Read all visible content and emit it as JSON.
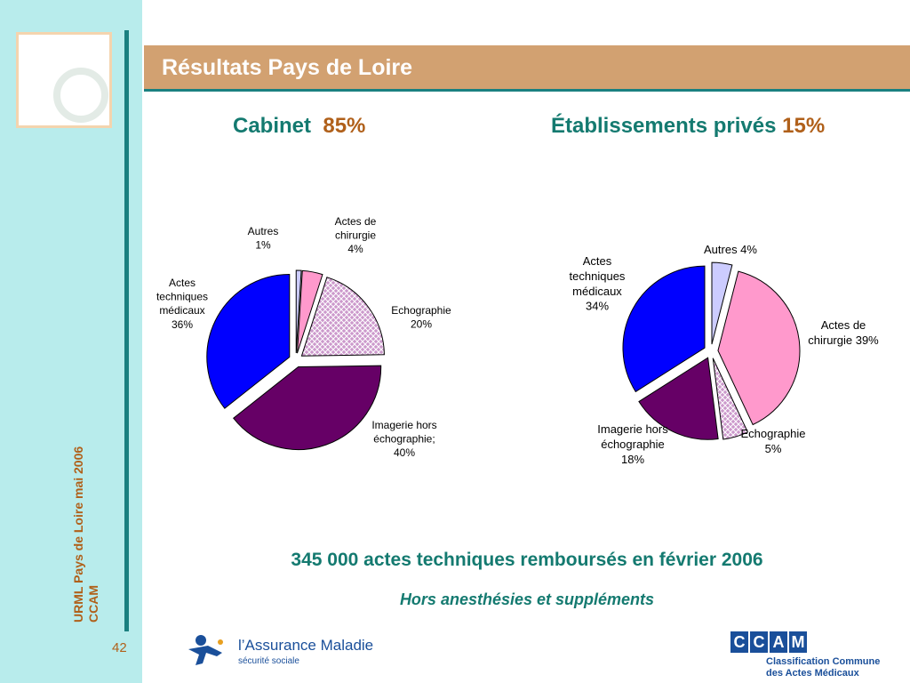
{
  "slide": {
    "title": "Résultats Pays de Loire",
    "page_number": "42",
    "sidebar_text": [
      "URML Pays de Loire mai 2006",
      "CCAM"
    ],
    "footer_main": "345 000 actes techniques remboursés en février 2006",
    "footer_sub": "Hors anesthésies et suppléments",
    "logo_assurance": "l’Assurance Maladie",
    "logo_assurance_sub": "sécurité sociale",
    "logo_ccam_letters": [
      "C",
      "C",
      "A",
      "M"
    ],
    "logo_ccam_lines": [
      "Classification Commune",
      "des Actes Médicaux"
    ]
  },
  "headings": {
    "left_label": "Cabinet",
    "left_value": "85%",
    "right_label": "Établissements privés",
    "right_value": "15%"
  },
  "colors": {
    "accent": "#1a8080",
    "title_bar": "#d2a171",
    "orange_text": "#b0601a",
    "teal_text": "#147a70",
    "sidebar": "#b8ecec"
  },
  "chart_data": [
    {
      "type": "pie",
      "title": "Cabinet",
      "slices": [
        {
          "category": "Autres",
          "value": 1,
          "label": [
            "Autres",
            "1%"
          ],
          "color": "#ccccff",
          "pattern": "solid"
        },
        {
          "category": "Actes de chirurgie",
          "value": 4,
          "label": [
            "Actes de",
            "chirurgie",
            "4%"
          ],
          "color": "#ff99cc",
          "pattern": "solid"
        },
        {
          "category": "Echographie",
          "value": 20,
          "label": [
            "Echographie",
            "20%"
          ],
          "color": "#cc99cc",
          "pattern": "crosshatch"
        },
        {
          "category": "Imagerie hors échographie",
          "value": 40,
          "label": [
            "Imagerie hors",
            "échographie;",
            "40%"
          ],
          "color": "#660066",
          "pattern": "solid"
        },
        {
          "category": "Actes techniques médicaux",
          "value": 36,
          "label": [
            "Actes",
            "techniques",
            "médicaux",
            "36%"
          ],
          "color": "#0000ff",
          "pattern": "solid"
        }
      ]
    },
    {
      "type": "pie",
      "title": "Établissements privés",
      "slices": [
        {
          "category": "Autres",
          "value": 4,
          "label": [
            "Autres 4%"
          ],
          "color": "#ccccff",
          "pattern": "solid"
        },
        {
          "category": "Actes de chirurgie",
          "value": 39,
          "label": [
            "Actes de",
            "chirurgie 39%"
          ],
          "color": "#ff99cc",
          "pattern": "solid"
        },
        {
          "category": "Echographie",
          "value": 5,
          "label": [
            "Echographie",
            "5%"
          ],
          "color": "#cc99cc",
          "pattern": "crosshatch"
        },
        {
          "category": "Imagerie hors échographie",
          "value": 18,
          "label": [
            "Imagerie hors",
            "échographie",
            "18%"
          ],
          "color": "#660066",
          "pattern": "solid"
        },
        {
          "category": "Actes techniques médicaux",
          "value": 34,
          "label": [
            "Actes",
            "techniques",
            "médicaux",
            "34%"
          ],
          "color": "#0000ff",
          "pattern": "solid"
        }
      ]
    }
  ]
}
